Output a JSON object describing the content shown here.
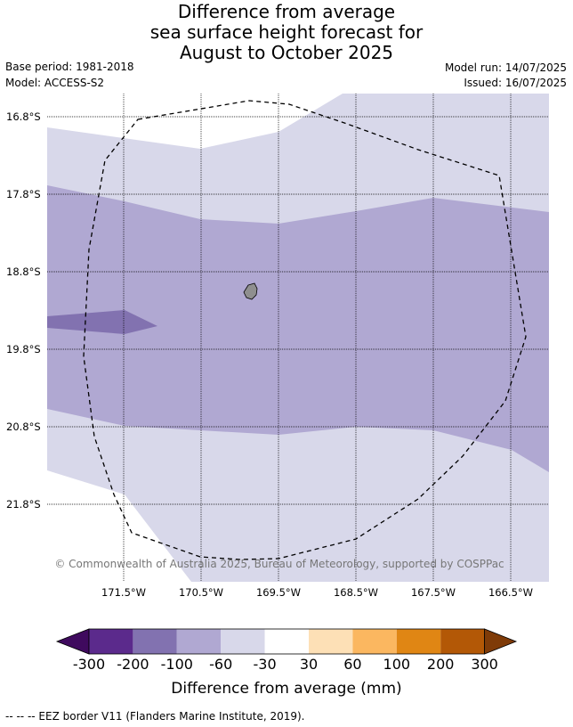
{
  "title": {
    "line1": "Difference from average",
    "line2": "sea surface height forecast for",
    "line3": "August to October 2025"
  },
  "meta": {
    "base_period": "Base period: 1981-2018",
    "model": "Model: ACCESS-S2",
    "model_run": "Model run: 14/07/2025",
    "issued": "Issued: 16/07/2025"
  },
  "map": {
    "copyright": "© Commonwealth of Australia 2025, Bureau of Meteorology, supported by COSPPac",
    "lat_labels": [
      "16.8°S",
      "17.8°S",
      "18.8°S",
      "19.8°S",
      "20.8°S",
      "21.8°S"
    ],
    "lon_labels": [
      "171.5°W",
      "170.5°W",
      "169.5°W",
      "168.5°W",
      "167.5°W",
      "166.5°W"
    ],
    "island_color": "#8f8f8f"
  },
  "colorbar": {
    "title": "Difference from average (mm)",
    "tick_labels": [
      "-300",
      "-200",
      "-100",
      "-60",
      "-30",
      "30",
      "60",
      "100",
      "200",
      "300"
    ],
    "colors": [
      "#3f0a5e",
      "#5b2a8c",
      "#8272b0",
      "#b0a8d2",
      "#d8d8ea",
      "#ffffff",
      "#fde0b6",
      "#fbb760",
      "#e08614",
      "#b35806",
      "#7f3b08"
    ]
  },
  "footer": {
    "eez_note": "--  --  -- EEZ border V11 (Flanders Marine Institute, 2019)."
  }
}
